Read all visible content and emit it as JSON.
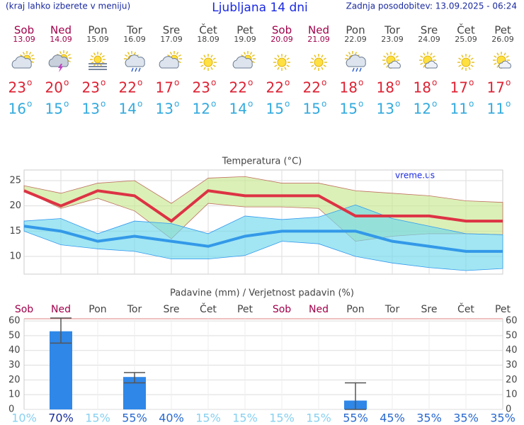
{
  "header": {
    "menu_hint": "(kraj lahko izberete v meniju)",
    "title": "Ljubljana 14 dni",
    "updated": "Zadnja posodobitev: 13.09.2025 - 06:24"
  },
  "forecast": {
    "days": [
      "Sob",
      "Ned",
      "Pon",
      "Tor",
      "Sre",
      "Čet",
      "Pet",
      "Sob",
      "Ned",
      "Pon",
      "Tor",
      "Sre",
      "Čet",
      "Pet"
    ],
    "dates": [
      "13.09",
      "14.09",
      "15.09",
      "16.09",
      "17.09",
      "18.09",
      "19.09",
      "20.09",
      "21.09",
      "22.09",
      "23.09",
      "24.09",
      "25.09",
      "26.09"
    ],
    "weekend": [
      true,
      true,
      false,
      false,
      false,
      false,
      false,
      true,
      true,
      false,
      false,
      false,
      false,
      false
    ],
    "weekend_color": "#a0004a",
    "weekday_color": "#444444",
    "max": [
      23,
      20,
      23,
      22,
      17,
      23,
      22,
      22,
      22,
      18,
      18,
      18,
      17,
      17
    ],
    "min": [
      16,
      15,
      13,
      14,
      13,
      12,
      14,
      15,
      15,
      15,
      13,
      12,
      11,
      11
    ],
    "max_color": "#dd2233",
    "min_color": "#33aadd",
    "degree_mark": "o"
  },
  "chart_data": [
    {
      "type": "line",
      "title": "Temperatura (°C)",
      "annotation": "vreme.us",
      "ylim": [
        6.5,
        27.1
      ],
      "yticks": [
        10,
        15,
        20,
        25
      ],
      "grid": true,
      "bands": [
        {
          "color": "#c8e890",
          "stroke": "#c07060",
          "upper": [
            24,
            22.5,
            24.5,
            25,
            20.5,
            25.5,
            25.8,
            24.5,
            24.5,
            23,
            22.5,
            22,
            21,
            20.7
          ],
          "lower": [
            23,
            19.5,
            21.5,
            19,
            13.5,
            20.5,
            19.8,
            19.8,
            19.5,
            13,
            14,
            14.5,
            14.5,
            14.3
          ]
        },
        {
          "color": "#70d8ec",
          "stroke": "#3399ee",
          "upper": [
            17,
            17.5,
            14.5,
            17,
            16.5,
            14.5,
            18,
            17.3,
            17.8,
            20.2,
            17.5,
            16,
            14.5,
            14.3
          ],
          "lower": [
            15,
            12.3,
            11.5,
            11,
            9.5,
            9.5,
            10.2,
            13,
            12.5,
            10,
            8.7,
            7.8,
            7.2,
            7.6
          ]
        }
      ],
      "series": [
        {
          "color": "#dd3344",
          "values": [
            23,
            20,
            23,
            22,
            17,
            23,
            22,
            22,
            22,
            18,
            18,
            18,
            17,
            17
          ]
        },
        {
          "color": "#3399e8",
          "values": [
            16,
            15,
            13,
            14,
            13,
            12,
            14,
            15,
            15,
            15,
            13,
            12,
            11,
            11
          ]
        }
      ]
    },
    {
      "type": "bar",
      "title": "Padavine (mm) / Verjetnost padavin (%)",
      "ylim": [
        0,
        61.5
      ],
      "yticks": [
        0,
        10,
        20,
        30,
        40,
        50,
        60
      ],
      "grid": true,
      "color": "#2f87e8",
      "values": [
        0,
        53,
        0,
        22,
        0,
        0,
        0,
        0,
        0,
        6,
        0,
        0,
        0,
        0
      ],
      "err_low": [
        null,
        45,
        null,
        18,
        null,
        null,
        null,
        null,
        null,
        0,
        null,
        null,
        null,
        null
      ],
      "err_high": [
        null,
        62,
        null,
        25,
        null,
        null,
        null,
        null,
        null,
        18,
        null,
        null,
        null,
        null
      ],
      "probability": [
        10,
        70,
        15,
        55,
        40,
        15,
        15,
        15,
        15,
        55,
        45,
        35,
        35,
        35
      ],
      "probability_labels": [
        "10%",
        "70%",
        "15%",
        "55%",
        "40%",
        "15%",
        "15%",
        "15%",
        "15%",
        "55%",
        "45%",
        "35%",
        "35%",
        "35%"
      ],
      "probability_colors": [
        {
          "min": 60,
          "color": "#1a2f9a"
        },
        {
          "min": 35,
          "color": "#2a6ad0"
        },
        {
          "min": 0,
          "color": "#88d0f0"
        }
      ]
    }
  ]
}
